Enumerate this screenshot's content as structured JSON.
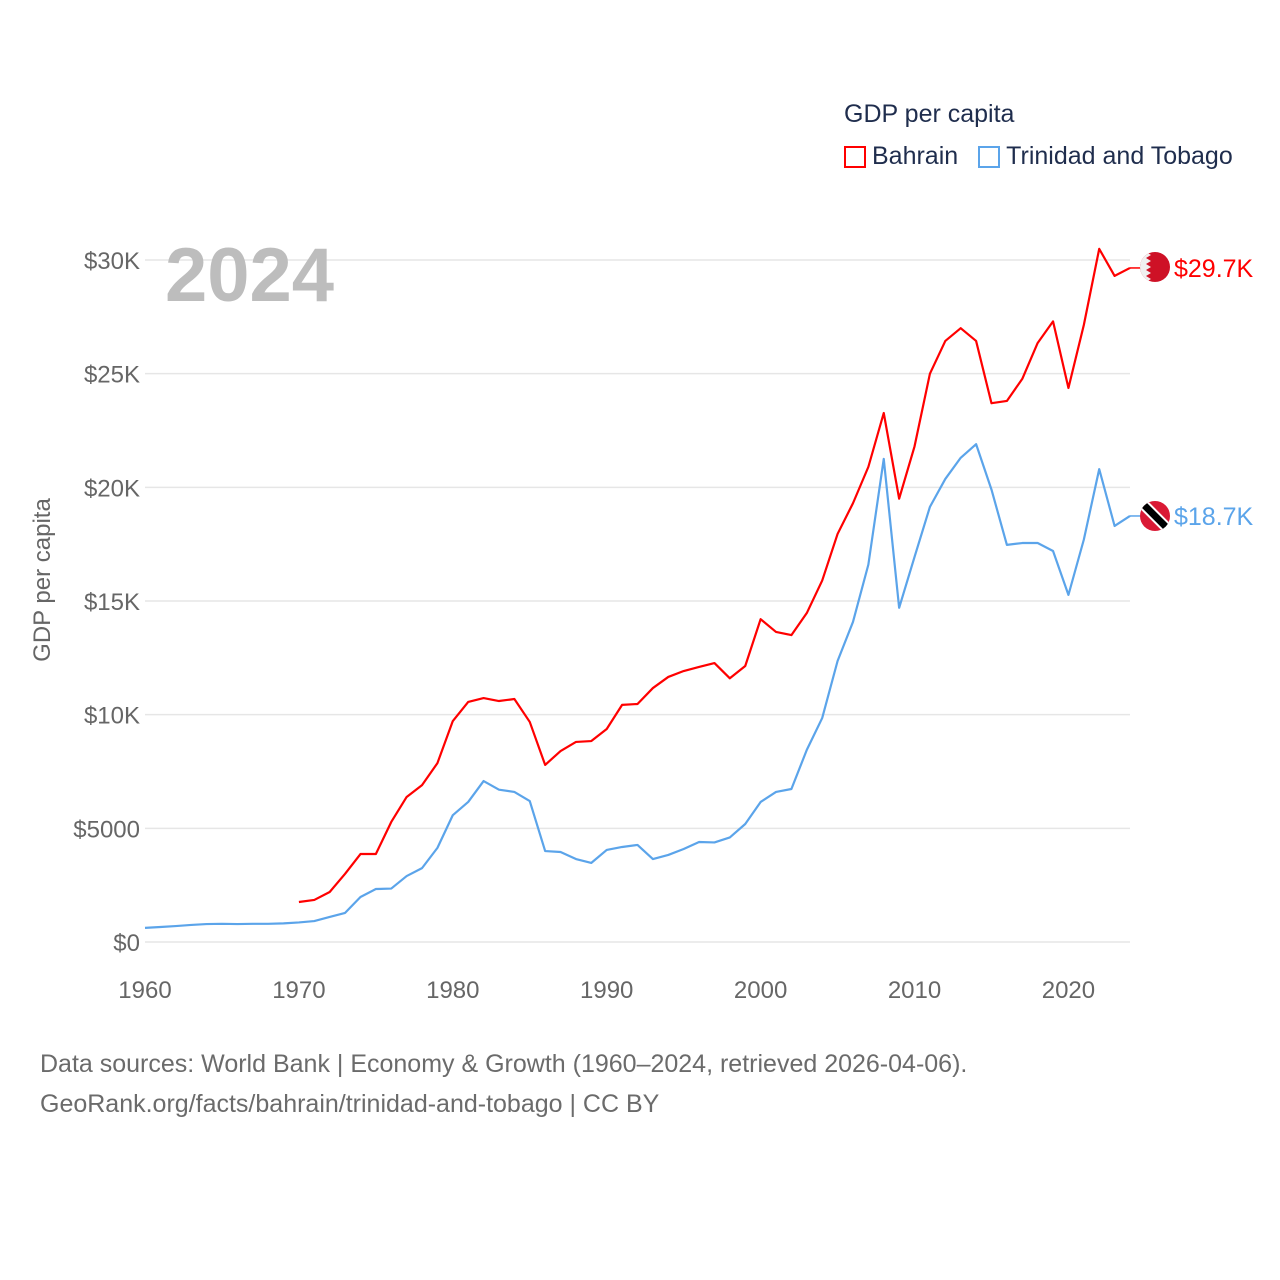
{
  "chart_data": {
    "type": "line",
    "title": "GDP per capita",
    "year_label": "2024",
    "ylabel": "GDP per capita",
    "xlabel": "",
    "xlim": [
      1960,
      2024
    ],
    "ylim": [
      0,
      30000
    ],
    "x_ticks": [
      1960,
      1970,
      1980,
      1990,
      2000,
      2010,
      2020
    ],
    "y_ticks": [
      0,
      5000,
      10000,
      15000,
      20000,
      25000,
      30000
    ],
    "y_tick_labels": [
      "$0",
      "$5000",
      "$10K",
      "$15K",
      "$20K",
      "$25K",
      "$30K"
    ],
    "grid": true,
    "legend_position": "top-right",
    "series": [
      {
        "name": "Bahrain",
        "color": "#ff0000",
        "end_label": "$29.7K",
        "flag": "bahrain-flag",
        "start_year": 1970,
        "values": [
          1760,
          1850,
          2200,
          3000,
          3870,
          3870,
          5280,
          6380,
          6900,
          7870,
          9720,
          10560,
          10730,
          10600,
          10690,
          9680,
          7790,
          8400,
          8800,
          8840,
          9370,
          10430,
          10470,
          11170,
          11660,
          11920,
          12100,
          12270,
          11600,
          12140,
          14200,
          13640,
          13500,
          14470,
          15900,
          17950,
          19300,
          20900,
          23270,
          19500,
          21800,
          25000,
          26440,
          27000,
          26440,
          23700,
          23800,
          24770,
          26350,
          27300,
          24370,
          27140,
          30490,
          29300,
          29650
        ]
      },
      {
        "name": "Trinidad and Tobago",
        "color": "#5ba4ea",
        "end_label": "$18.7K",
        "flag": "trinidad-and-tobago-flag",
        "start_year": 1960,
        "values": [
          620,
          660,
          700,
          750,
          790,
          800,
          790,
          800,
          800,
          820,
          860,
          920,
          1100,
          1280,
          1980,
          2330,
          2350,
          2900,
          3250,
          4140,
          5580,
          6160,
          7080,
          6700,
          6600,
          6200,
          4000,
          3960,
          3650,
          3480,
          4050,
          4180,
          4270,
          3650,
          3830,
          4090,
          4400,
          4380,
          4600,
          5190,
          6160,
          6600,
          6730,
          8450,
          9850,
          12360,
          14080,
          16600,
          21250,
          14700,
          16940,
          19140,
          20370,
          21300,
          21900,
          19900,
          17470,
          17550,
          17550,
          17200,
          15270,
          17700,
          20800,
          18300,
          18740
        ]
      }
    ]
  },
  "footer": {
    "line1": "Data sources: World Bank | Economy & Growth (1960–2024, retrieved 2026-04-06).",
    "line2": "GeoRank.org/facts/bahrain/trinidad-and-tobago | CC BY"
  }
}
